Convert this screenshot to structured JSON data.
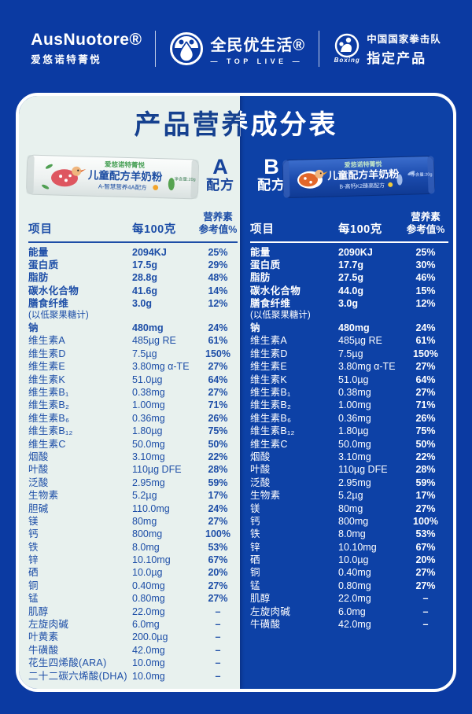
{
  "header": {
    "brand_en": "AusNuotore®",
    "brand_cn": "爱悠诺特菁悦",
    "center_name": "全民优生活®",
    "center_sub": "— TOP LIVE —",
    "boxing_word": "Boxing",
    "right_line1": "中国国家拳击队",
    "right_line2": "指定产品"
  },
  "title": "产品营养成分表",
  "colors": {
    "page_blue": "#0b3aa2",
    "panel_light": "#e8f1ee",
    "ink_blue": "#1d4ea7"
  },
  "formulas": [
    {
      "label_letter": "A",
      "label_word": "配方",
      "product": {
        "line1": "爱悠诺特菁悦",
        "line2": "儿童配方羊奶粉",
        "line3": "A-智慧营养4A配方",
        "net": "净含量:20g"
      },
      "table": {
        "col_item": "项目",
        "col_per100g": "每100克",
        "col_nrv_line1": "营养素",
        "col_nrv_line2": "参考值%",
        "rows": [
          {
            "name": "能量",
            "value": "2094KJ",
            "nrv": "25%",
            "bold": true
          },
          {
            "name": "蛋白质",
            "value": "17.5g",
            "nrv": "29%",
            "bold": true
          },
          {
            "name": "脂肪",
            "value": "28.8g",
            "nrv": "48%",
            "bold": true
          },
          {
            "name": "碳水化合物",
            "value": "41.6g",
            "nrv": "14%",
            "bold": true
          },
          {
            "name": "膳食纤维",
            "note": "(以低聚果糖计)",
            "value": "3.0g",
            "nrv": "12%",
            "bold": true
          },
          {
            "name": "钠",
            "value": "480mg",
            "nrv": "24%",
            "bold": true
          },
          {
            "name": "维生素A",
            "value": "485µg RE",
            "nrv": "61%",
            "bold": false
          },
          {
            "name": "维生素D",
            "value": "7.5µg",
            "nrv": "150%",
            "bold": false
          },
          {
            "name": "维生素E",
            "value": "3.80mg α-TE",
            "nrv": "27%",
            "bold": false
          },
          {
            "name": "维生素K",
            "value": "51.0µg",
            "nrv": "64%",
            "bold": false
          },
          {
            "name": "维生素B₁",
            "value": "0.38mg",
            "nrv": "27%",
            "bold": false
          },
          {
            "name": "维生素B₂",
            "value": "1.00mg",
            "nrv": "71%",
            "bold": false
          },
          {
            "name": "维生素B₆",
            "value": "0.36mg",
            "nrv": "26%",
            "bold": false
          },
          {
            "name": "维生素B₁₂",
            "value": "1.80µg",
            "nrv": "75%",
            "bold": false
          },
          {
            "name": "维生素C",
            "value": "50.0mg",
            "nrv": "50%",
            "bold": false
          },
          {
            "name": "烟酸",
            "value": "3.10mg",
            "nrv": "22%",
            "bold": false
          },
          {
            "name": "叶酸",
            "value": "110µg DFE",
            "nrv": "28%",
            "bold": false
          },
          {
            "name": "泛酸",
            "value": "2.95mg",
            "nrv": "59%",
            "bold": false
          },
          {
            "name": "生物素",
            "value": "5.2µg",
            "nrv": "17%",
            "bold": false
          },
          {
            "name": "胆碱",
            "value": "110.0mg",
            "nrv": "24%",
            "bold": false
          },
          {
            "name": "镁",
            "value": "80mg",
            "nrv": "27%",
            "bold": false
          },
          {
            "name": "钙",
            "value": "800mg",
            "nrv": "100%",
            "bold": false
          },
          {
            "name": "铁",
            "value": "8.0mg",
            "nrv": "53%",
            "bold": false
          },
          {
            "name": "锌",
            "value": "10.10mg",
            "nrv": "67%",
            "bold": false
          },
          {
            "name": "硒",
            "value": "10.0µg",
            "nrv": "20%",
            "bold": false
          },
          {
            "name": "铜",
            "value": "0.40mg",
            "nrv": "27%",
            "bold": false
          },
          {
            "name": "锰",
            "value": "0.80mg",
            "nrv": "27%",
            "bold": false
          },
          {
            "name": "肌醇",
            "value": "22.0mg",
            "nrv": "–",
            "bold": false
          },
          {
            "name": "左旋肉碱",
            "value": "6.0mg",
            "nrv": "–",
            "bold": false
          },
          {
            "name": "叶黄素",
            "value": "200.0µg",
            "nrv": "–",
            "bold": false
          },
          {
            "name": "牛磺酸",
            "value": "42.0mg",
            "nrv": "–",
            "bold": false
          },
          {
            "name": "花生四烯酸(ARA)",
            "value": "10.0mg",
            "nrv": "–",
            "bold": false
          },
          {
            "name": "二十二碳六烯酸(DHA)",
            "value": "10.0mg",
            "nrv": "–",
            "bold": false
          }
        ]
      }
    },
    {
      "label_letter": "B",
      "label_word": "配方",
      "product": {
        "line1": "爱悠诺特菁悦",
        "line2": "儿童配方羊奶粉",
        "line3": "B-高钙K2臻高配方",
        "net": "净含量:20g"
      },
      "table": {
        "col_item": "项目",
        "col_per100g": "每100克",
        "col_nrv_line1": "营养素",
        "col_nrv_line2": "参考值%",
        "rows": [
          {
            "name": "能量",
            "value": "2090KJ",
            "nrv": "25%",
            "bold": true
          },
          {
            "name": "蛋白质",
            "value": "17.7g",
            "nrv": "30%",
            "bold": true
          },
          {
            "name": "脂肪",
            "value": "27.5g",
            "nrv": "46%",
            "bold": true
          },
          {
            "name": "碳水化合物",
            "value": "44.0g",
            "nrv": "15%",
            "bold": true
          },
          {
            "name": "膳食纤维",
            "note": "(以低聚果糖计)",
            "value": "3.0g",
            "nrv": "12%",
            "bold": true
          },
          {
            "name": "钠",
            "value": "480mg",
            "nrv": "24%",
            "bold": true
          },
          {
            "name": "维生素A",
            "value": "485µg RE",
            "nrv": "61%",
            "bold": false
          },
          {
            "name": "维生素D",
            "value": "7.5µg",
            "nrv": "150%",
            "bold": false
          },
          {
            "name": "维生素E",
            "value": "3.80mg α-TE",
            "nrv": "27%",
            "bold": false
          },
          {
            "name": "维生素K",
            "value": "51.0µg",
            "nrv": "64%",
            "bold": false
          },
          {
            "name": "维生素B₁",
            "value": "0.38mg",
            "nrv": "27%",
            "bold": false
          },
          {
            "name": "维生素B₂",
            "value": "1.00mg",
            "nrv": "71%",
            "bold": false
          },
          {
            "name": "维生素B₆",
            "value": "0.36mg",
            "nrv": "26%",
            "bold": false
          },
          {
            "name": "维生素B₁₂",
            "value": "1.80µg",
            "nrv": "75%",
            "bold": false
          },
          {
            "name": "维生素C",
            "value": "50.0mg",
            "nrv": "50%",
            "bold": false
          },
          {
            "name": "烟酸",
            "value": "3.10mg",
            "nrv": "22%",
            "bold": false
          },
          {
            "name": "叶酸",
            "value": "110µg DFE",
            "nrv": "28%",
            "bold": false
          },
          {
            "name": "泛酸",
            "value": "2.95mg",
            "nrv": "59%",
            "bold": false
          },
          {
            "name": "生物素",
            "value": "5.2µg",
            "nrv": "17%",
            "bold": false
          },
          {
            "name": "镁",
            "value": "80mg",
            "nrv": "27%",
            "bold": false
          },
          {
            "name": "钙",
            "value": "800mg",
            "nrv": "100%",
            "bold": false
          },
          {
            "name": "铁",
            "value": "8.0mg",
            "nrv": "53%",
            "bold": false
          },
          {
            "name": "锌",
            "value": "10.10mg",
            "nrv": "67%",
            "bold": false
          },
          {
            "name": "硒",
            "value": "10.0µg",
            "nrv": "20%",
            "bold": false
          },
          {
            "name": "铜",
            "value": "0.40mg",
            "nrv": "27%",
            "bold": false
          },
          {
            "name": "锰",
            "value": "0.80mg",
            "nrv": "27%",
            "bold": false
          },
          {
            "name": "肌醇",
            "value": "22.0mg",
            "nrv": "–",
            "bold": false
          },
          {
            "name": "左旋肉碱",
            "value": "6.0mg",
            "nrv": "–",
            "bold": false
          },
          {
            "name": "牛磺酸",
            "value": "42.0mg",
            "nrv": "–",
            "bold": false
          }
        ]
      }
    }
  ]
}
